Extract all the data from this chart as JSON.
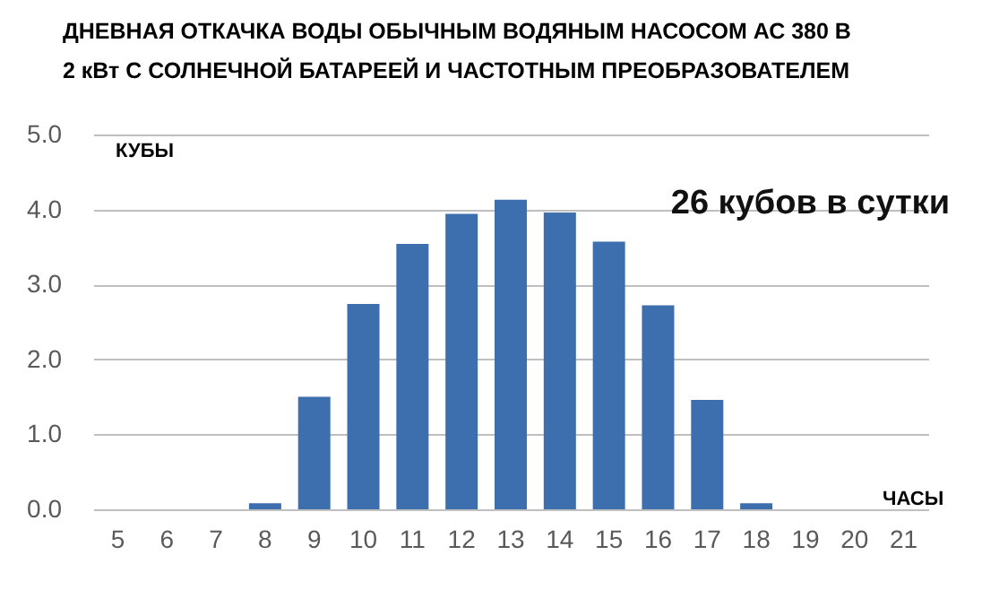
{
  "chart_data": {
    "type": "bar",
    "title": "ДНЕВНАЯ ОТКАЧКА ВОДЫ ОБЫЧНЫМ ВОДЯНЫМ НАСОСОМ АС 380 В\n2 кВт С СОЛНЕЧНОЙ БАТАРЕЕЙ И ЧАСТОТНЫМ ПРЕОБРАЗОВАТЕЛЕМ",
    "xlabel": "ЧАСЫ",
    "ylabel": "КУБЫ",
    "annotations": [
      "26 кубов в сутки"
    ],
    "categories": [
      "5",
      "6",
      "7",
      "8",
      "9",
      "10",
      "11",
      "12",
      "13",
      "14",
      "15",
      "16",
      "17",
      "18",
      "19",
      "20",
      "21"
    ],
    "values": [
      0,
      0,
      0,
      0.08,
      1.5,
      2.74,
      3.54,
      3.94,
      4.13,
      3.96,
      3.57,
      2.72,
      1.46,
      0.08,
      0,
      0,
      0
    ],
    "color": "#3d6ead",
    "ylim": [
      0,
      5
    ],
    "yticks": [
      {
        "value": 0,
        "label": "0.0"
      },
      {
        "value": 1,
        "label": "1.0"
      },
      {
        "value": 2,
        "label": "2.0"
      },
      {
        "value": 3,
        "label": "3.0"
      },
      {
        "value": 4,
        "label": "4.0"
      },
      {
        "value": 5,
        "label": "5.0"
      }
    ],
    "grid": "y"
  }
}
